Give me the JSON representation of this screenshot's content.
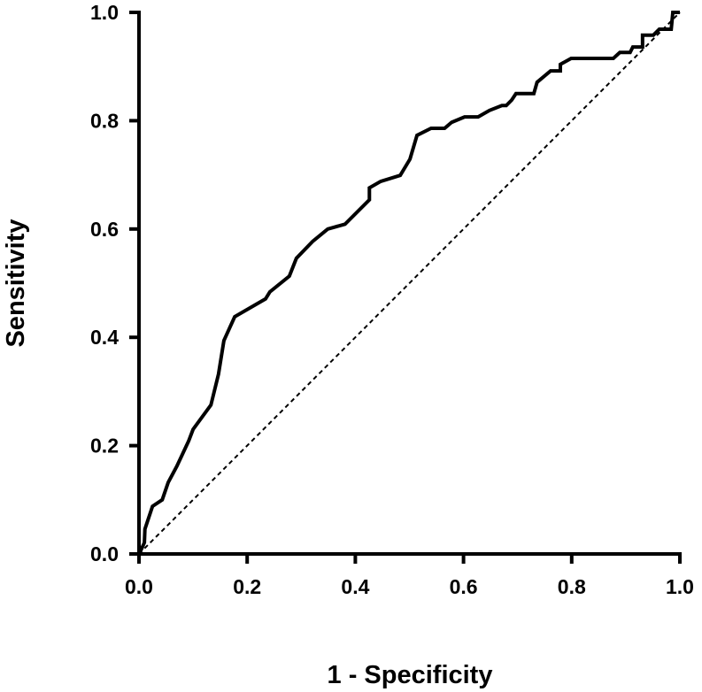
{
  "chart_data": {
    "type": "line",
    "title": "",
    "xlabel": "1 - Specificity",
    "ylabel": "Sensitivity",
    "xlim": [
      0,
      1
    ],
    "ylim": [
      0,
      1
    ],
    "xticks": [
      "0.0",
      "0.2",
      "0.4",
      "0.6",
      "0.8",
      "1.0"
    ],
    "yticks": [
      "0.0",
      "0.2",
      "0.4",
      "0.6",
      "0.8",
      "1.0"
    ],
    "grid": false,
    "legend": "none",
    "series": [
      {
        "style": "solid",
        "color": "#000000",
        "x": [
          0,
          0.005,
          0.01,
          0.011,
          0.025,
          0.043,
          0.054,
          0.07,
          0.092,
          0.1,
          0.133,
          0.147,
          0.157,
          0.177,
          0.234,
          0.242,
          0.278,
          0.291,
          0.321,
          0.349,
          0.381,
          0.419,
          0.426,
          0.426,
          0.447,
          0.483,
          0.501,
          0.514,
          0.54,
          0.565,
          0.578,
          0.602,
          0.627,
          0.648,
          0.671,
          0.679,
          0.689,
          0.697,
          0.73,
          0.736,
          0.761,
          0.779,
          0.779,
          0.799,
          0.877,
          0.889,
          0.908,
          0.913,
          0.931,
          0.931,
          0.951,
          0.962,
          0.984,
          0.987,
          1.0
        ],
        "y": [
          0,
          0.01,
          0.021,
          0.046,
          0.088,
          0.1,
          0.132,
          0.162,
          0.209,
          0.23,
          0.275,
          0.332,
          0.394,
          0.438,
          0.471,
          0.484,
          0.513,
          0.546,
          0.577,
          0.6,
          0.609,
          0.647,
          0.654,
          0.676,
          0.688,
          0.699,
          0.729,
          0.773,
          0.786,
          0.786,
          0.797,
          0.807,
          0.807,
          0.819,
          0.828,
          0.828,
          0.838,
          0.85,
          0.85,
          0.871,
          0.892,
          0.892,
          0.904,
          0.915,
          0.915,
          0.926,
          0.926,
          0.936,
          0.936,
          0.958,
          0.958,
          0.969,
          0.969,
          1.0,
          1.0
        ]
      },
      {
        "style": "dashed",
        "color": "#000000",
        "x": [
          0,
          1
        ],
        "y": [
          0,
          1
        ]
      }
    ]
  }
}
